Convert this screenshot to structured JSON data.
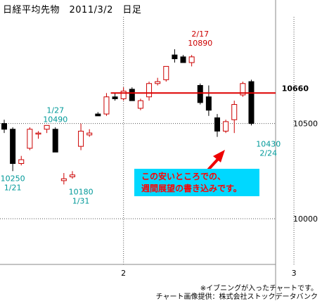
{
  "title": "日経平均先物　2011/3/2　日足",
  "colors": {
    "up": "#cc0000",
    "down": "#000000",
    "hline": "#dd0000",
    "ann_red": "#cc0000",
    "ann_teal": "#009999",
    "callout_bg": "#00d8ff",
    "callout_text": "#ff0000",
    "arrow": "#ee0000"
  },
  "callout": {
    "line1": "この安いところでの、",
    "line2": "週間展望の書き込みです。"
  },
  "credits": {
    "line1": "※イブニングが入ったチャートです。",
    "line2": "チャート画像提供：株式会社ストックデータバンク"
  },
  "chart_data": {
    "type": "candlestick",
    "ylim": [
      9760,
      11060
    ],
    "x_ticks": [
      {
        "label": "2",
        "index": 14
      },
      {
        "label": "3",
        "index": 34
      }
    ],
    "y_ticks": [
      10000,
      10500
    ],
    "hline": {
      "value": 10660,
      "label": "10660"
    },
    "annotations": [
      {
        "text": "2/17",
        "value": 10890,
        "index": 23,
        "pos": "above",
        "color": "ann_red"
      },
      {
        "text": "10890",
        "value": 10890,
        "index": 23,
        "pos": "above2",
        "color": "ann_red"
      },
      {
        "text": "1/27",
        "value": 10490,
        "index": 6,
        "pos": "above",
        "color": "ann_teal"
      },
      {
        "text": "10490",
        "value": 10490,
        "index": 6,
        "pos": "above2",
        "color": "ann_teal"
      },
      {
        "text": "10250",
        "value": 10250,
        "index": 1,
        "pos": "below",
        "color": "ann_teal"
      },
      {
        "text": "1/21",
        "value": 10250,
        "index": 1,
        "pos": "below2",
        "color": "ann_teal"
      },
      {
        "text": "10180",
        "value": 10180,
        "index": 9,
        "pos": "below",
        "color": "ann_teal"
      },
      {
        "text": "1/31",
        "value": 10180,
        "index": 9,
        "pos": "below2",
        "color": "ann_teal"
      },
      {
        "text": "10430",
        "value": 10430,
        "index": 31,
        "pos": "below",
        "color": "ann_teal"
      },
      {
        "text": "2/24",
        "value": 10430,
        "index": 31,
        "pos": "below2",
        "color": "ann_teal"
      }
    ],
    "candles": [
      {
        "o": 10500,
        "h": 10520,
        "l": 10450,
        "c": 10470
      },
      {
        "o": 10470,
        "h": 10480,
        "l": 10250,
        "c": 10290
      },
      {
        "o": 10290,
        "h": 10330,
        "l": 10280,
        "c": 10310
      },
      {
        "o": 10370,
        "h": 10480,
        "l": 10360,
        "c": 10470
      },
      {
        "o": 10450,
        "h": 10460,
        "l": 10420,
        "c": 10450
      },
      {
        "o": 10470,
        "h": 10490,
        "l": 10450,
        "c": 10490
      },
      {
        "o": 10470,
        "h": 10480,
        "l": 10350,
        "c": 10350
      },
      {
        "o": 10200,
        "h": 10240,
        "l": 10180,
        "c": 10210
      },
      {
        "o": 10220,
        "h": 10250,
        "l": 10210,
        "c": 10230
      },
      {
        "o": 10380,
        "h": 10500,
        "l": 10360,
        "c": 10460
      },
      {
        "o": 10440,
        "h": 10470,
        "l": 10430,
        "c": 10450
      },
      {
        "o": 10550,
        "h": 10560,
        "l": 10540,
        "c": 10540
      },
      {
        "o": 10550,
        "h": 10660,
        "l": 10540,
        "c": 10640
      },
      {
        "o": 10640,
        "h": 10660,
        "l": 10620,
        "c": 10630
      },
      {
        "o": 10630,
        "h": 10690,
        "l": 10620,
        "c": 10670
      },
      {
        "o": 10680,
        "h": 10690,
        "l": 10620,
        "c": 10620
      },
      {
        "o": 10580,
        "h": 10630,
        "l": 10570,
        "c": 10620
      },
      {
        "o": 10640,
        "h": 10720,
        "l": 10620,
        "c": 10710
      },
      {
        "o": 10710,
        "h": 10740,
        "l": 10700,
        "c": 10720
      },
      {
        "o": 10730,
        "h": 10800,
        "l": 10720,
        "c": 10800
      },
      {
        "o": 10860,
        "h": 10890,
        "l": 10820,
        "c": 10840
      },
      {
        "o": 10850,
        "h": 10860,
        "l": 10820,
        "c": 10820
      },
      {
        "o": 10820,
        "h": 10860,
        "l": 10800,
        "c": 10850
      },
      {
        "o": 10700,
        "h": 10710,
        "l": 10600,
        "c": 10610
      },
      {
        "o": 10640,
        "h": 10700,
        "l": 10540,
        "c": 10570
      },
      {
        "o": 10530,
        "h": 10550,
        "l": 10430,
        "c": 10460
      },
      {
        "o": 10460,
        "h": 10520,
        "l": 10450,
        "c": 10510
      },
      {
        "o": 10520,
        "h": 10620,
        "l": 10450,
        "c": 10600
      },
      {
        "o": 10650,
        "h": 10720,
        "l": 10640,
        "c": 10710
      },
      {
        "o": 10720,
        "h": 10730,
        "l": 10490,
        "c": 10500
      }
    ]
  }
}
